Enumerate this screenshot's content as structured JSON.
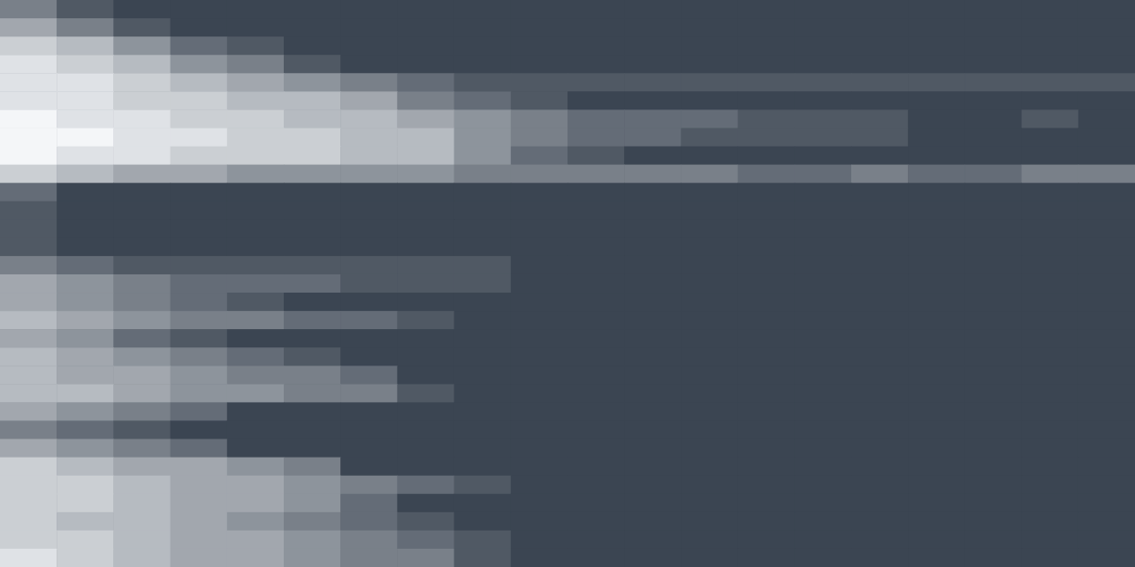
{
  "chart_data": {
    "type": "heatmap",
    "tick_labels": false,
    "grid": false,
    "color": "#f4f6f8",
    "zlim": [
      0,
      9
    ],
    "z": [
      [
        3,
        1,
        0,
        0,
        0,
        0,
        0,
        0,
        0,
        0,
        0,
        0,
        0,
        0,
        0,
        0,
        0,
        0,
        0,
        0
      ],
      [
        5,
        3,
        1,
        0,
        0,
        0,
        0,
        0,
        0,
        0,
        0,
        0,
        0,
        0,
        0,
        0,
        0,
        0,
        0,
        0
      ],
      [
        7,
        6,
        4,
        2,
        1,
        0,
        0,
        0,
        0,
        0,
        0,
        0,
        0,
        0,
        0,
        0,
        0,
        0,
        0,
        0
      ],
      [
        8,
        7,
        6,
        4,
        3,
        1,
        0,
        0,
        0,
        0,
        0,
        0,
        0,
        0,
        0,
        0,
        0,
        0,
        0,
        0
      ],
      [
        8,
        8,
        7,
        6,
        5,
        4,
        3,
        2,
        1,
        1,
        1,
        1,
        1,
        1,
        1,
        1,
        1,
        1,
        1,
        1
      ],
      [
        8,
        8,
        7,
        7,
        6,
        6,
        5,
        3,
        2,
        1,
        0,
        0,
        0,
        0,
        0,
        0,
        0,
        0,
        0,
        0
      ],
      [
        9,
        8,
        8,
        7,
        7,
        6,
        6,
        5,
        4,
        3,
        2,
        2,
        2,
        1,
        1,
        1,
        0,
        0,
        1,
        0
      ],
      [
        9,
        9,
        8,
        8,
        7,
        7,
        6,
        6,
        4,
        3,
        2,
        2,
        1,
        1,
        1,
        1,
        0,
        0,
        0,
        0
      ],
      [
        9,
        8,
        8,
        7,
        7,
        7,
        6,
        6,
        4,
        2,
        1,
        0,
        0,
        0,
        0,
        0,
        0,
        0,
        0,
        0
      ],
      [
        7,
        6,
        5,
        5,
        4,
        4,
        4,
        4,
        3,
        3,
        3,
        3,
        3,
        2,
        2,
        3,
        2,
        2,
        3,
        3
      ],
      [
        2,
        0,
        0,
        0,
        0,
        0,
        0,
        0,
        0,
        0,
        0,
        0,
        0,
        0,
        0,
        0,
        0,
        0,
        0,
        0
      ],
      [
        1,
        0,
        0,
        0,
        0,
        0,
        0,
        0,
        0,
        0,
        0,
        0,
        0,
        0,
        0,
        0,
        0,
        0,
        0,
        0
      ],
      [
        1,
        0,
        0,
        0,
        0,
        0,
        0,
        0,
        0,
        0,
        0,
        0,
        0,
        0,
        0,
        0,
        0,
        0,
        0,
        0
      ],
      [
        1,
        0,
        0,
        0,
        0,
        0,
        0,
        0,
        0,
        0,
        0,
        0,
        0,
        0,
        0,
        0,
        0,
        0,
        0,
        0
      ],
      [
        3,
        2,
        1,
        1,
        1,
        1,
        1,
        1,
        1,
        0,
        0,
        0,
        0,
        0,
        0,
        0,
        0,
        0,
        0,
        0
      ],
      [
        5,
        4,
        3,
        2,
        2,
        2,
        1,
        1,
        1,
        0,
        0,
        0,
        0,
        0,
        0,
        0,
        0,
        0,
        0,
        0
      ],
      [
        5,
        4,
        3,
        2,
        1,
        0,
        0,
        0,
        0,
        0,
        0,
        0,
        0,
        0,
        0,
        0,
        0,
        0,
        0,
        0
      ],
      [
        6,
        5,
        4,
        3,
        3,
        2,
        2,
        1,
        0,
        0,
        0,
        0,
        0,
        0,
        0,
        0,
        0,
        0,
        0,
        0
      ],
      [
        5,
        4,
        2,
        1,
        0,
        0,
        0,
        0,
        0,
        0,
        0,
        0,
        0,
        0,
        0,
        0,
        0,
        0,
        0,
        0
      ],
      [
        6,
        5,
        4,
        3,
        2,
        1,
        0,
        0,
        0,
        0,
        0,
        0,
        0,
        0,
        0,
        0,
        0,
        0,
        0,
        0
      ],
      [
        6,
        5,
        5,
        4,
        3,
        3,
        2,
        0,
        0,
        0,
        0,
        0,
        0,
        0,
        0,
        0,
        0,
        0,
        0,
        0
      ],
      [
        6,
        6,
        5,
        4,
        4,
        3,
        3,
        1,
        0,
        0,
        0,
        0,
        0,
        0,
        0,
        0,
        0,
        0,
        0,
        0
      ],
      [
        5,
        4,
        3,
        2,
        0,
        0,
        0,
        0,
        0,
        0,
        0,
        0,
        0,
        0,
        0,
        0,
        0,
        0,
        0,
        0
      ],
      [
        3,
        2,
        1,
        0,
        0,
        0,
        0,
        0,
        0,
        0,
        0,
        0,
        0,
        0,
        0,
        0,
        0,
        0,
        0,
        0
      ],
      [
        5,
        4,
        3,
        2,
        0,
        0,
        0,
        0,
        0,
        0,
        0,
        0,
        0,
        0,
        0,
        0,
        0,
        0,
        0,
        0
      ],
      [
        7,
        6,
        5,
        5,
        4,
        3,
        0,
        0,
        0,
        0,
        0,
        0,
        0,
        0,
        0,
        0,
        0,
        0,
        0,
        0
      ],
      [
        7,
        7,
        6,
        5,
        5,
        4,
        3,
        2,
        1,
        0,
        0,
        0,
        0,
        0,
        0,
        0,
        0,
        0,
        0,
        0
      ],
      [
        7,
        7,
        6,
        5,
        5,
        4,
        2,
        0,
        0,
        0,
        0,
        0,
        0,
        0,
        0,
        0,
        0,
        0,
        0,
        0
      ],
      [
        7,
        6,
        6,
        5,
        4,
        3,
        2,
        1,
        0,
        0,
        0,
        0,
        0,
        0,
        0,
        0,
        0,
        0,
        0,
        0
      ],
      [
        7,
        7,
        6,
        5,
        5,
        4,
        3,
        2,
        1,
        0,
        0,
        0,
        0,
        0,
        0,
        0,
        0,
        0,
        0,
        0
      ],
      [
        8,
        7,
        6,
        5,
        5,
        4,
        3,
        3,
        1,
        0,
        0,
        0,
        0,
        0,
        0,
        0,
        0,
        0,
        0,
        0
      ]
    ]
  }
}
